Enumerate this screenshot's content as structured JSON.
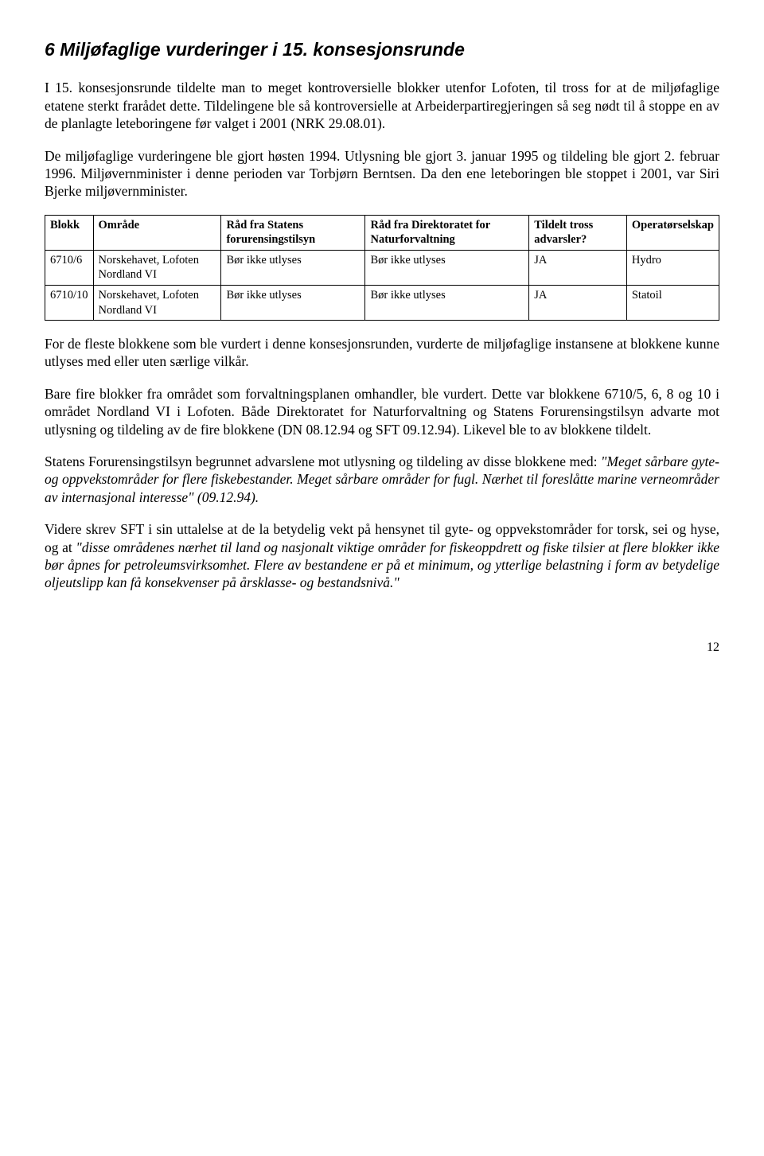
{
  "title": "6 Miljøfaglige vurderinger i 15. konsesjonsrunde",
  "para1": "I 15. konsesjonsrunde tildelte man to meget kontroversielle blokker utenfor Lofoten, til tross for at de miljøfaglige etatene sterkt frarådet dette. Tildelingene ble så kontroversielle at Arbeiderpartiregjeringen så seg nødt til å stoppe en av de planlagte leteboringene før valget i 2001 (NRK 29.08.01).",
  "para2": "De miljøfaglige vurderingene ble gjort høsten 1994. Utlysning ble gjort 3. januar 1995 og tildeling ble gjort 2. februar 1996. Miljøvernminister i denne perioden var Torbjørn Berntsen. Da den ene leteboringen ble stoppet i 2001, var Siri Bjerke miljøvernminister.",
  "table": {
    "headers": {
      "c0": "Blokk",
      "c1": "Område",
      "c2": "Råd fra Statens forurensingstilsyn",
      "c3": "Råd fra Direktoratet for Naturforvaltning",
      "c4": "Tildelt tross advarsler?",
      "c5": "Operatørselskap"
    },
    "rows": [
      {
        "c0": "6710/6",
        "c1": "Norskehavet, Lofoten Nordland VI",
        "c2": "Bør ikke utlyses",
        "c3": "Bør ikke utlyses",
        "c4": "JA",
        "c5": "Hydro"
      },
      {
        "c0": "6710/10",
        "c1": "Norskehavet, Lofoten Nordland VI",
        "c2": "Bør ikke utlyses",
        "c3": "Bør ikke utlyses",
        "c4": "JA",
        "c5": "Statoil"
      }
    ]
  },
  "para3": "For de fleste blokkene som ble vurdert i denne konsesjonsrunden, vurderte de miljøfaglige instansene at blokkene kunne utlyses med eller uten særlige vilkår.",
  "para4": "Bare fire blokker fra området som forvaltningsplanen omhandler, ble vurdert. Dette var blokkene 6710/5, 6, 8 og 10 i området Nordland VI i Lofoten. Både Direktoratet for Naturforvaltning og Statens Forurensingstilsyn advarte mot utlysning og tildeling av de fire blokkene (DN 08.12.94 og SFT 09.12.94). Likevel ble to av blokkene tildelt.",
  "para5_pre": "Statens Forurensingstilsyn begrunnet advarslene mot utlysning og tildeling av disse blokkene med: ",
  "para5_quote": "\"Meget sårbare gyte- og oppvekstområder for flere fiskebestander. Meget sårbare områder for fugl. Nærhet til foreslåtte marine verneområder av internasjonal interesse\" (09.12.94).",
  "para6_pre": "Videre skrev SFT i sin uttalelse at de la betydelig vekt på hensynet til gyte- og oppvekstområder for torsk, sei og hyse, og at ",
  "para6_quote": "\"disse områdenes nærhet til land og nasjonalt viktige områder for fiskeoppdrett og fiske tilsier at flere blokker ikke bør åpnes for petroleumsvirksomhet. Flere av bestandene er på et minimum, og ytterlige belastning i form av betydelige oljeutslipp kan få konsekvenser på årsklasse- og bestandsnivå.\"",
  "page_number": "12"
}
